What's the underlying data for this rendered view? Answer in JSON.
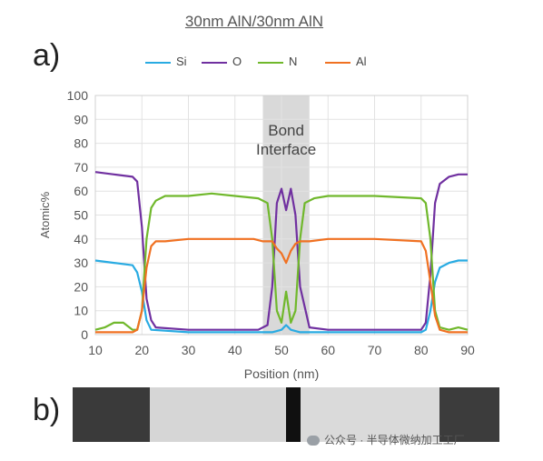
{
  "figure_title": "30nm AlN/30nm AlN",
  "panel_a_label": "a)",
  "panel_b_label": "b)",
  "watermark_text": "公众号 · 半导体微纳加工工厂",
  "chart_data": {
    "type": "line",
    "title": "",
    "xlabel": "Position (nm)",
    "ylabel": "Atomic%",
    "xlim": [
      10,
      90
    ],
    "ylim": [
      0,
      100
    ],
    "xticks": [
      10,
      20,
      30,
      40,
      50,
      60,
      70,
      80,
      90
    ],
    "yticks": [
      0,
      10,
      20,
      30,
      40,
      50,
      60,
      70,
      80,
      90,
      100
    ],
    "grid": true,
    "legend_position": "top",
    "shaded_region": {
      "x": [
        46,
        56
      ],
      "label_line1": "Bond",
      "label_line2": "Interface",
      "color": "#d9d9d9"
    },
    "series": [
      {
        "name": "Si",
        "color": "#29abe2",
        "x": [
          10,
          14,
          18,
          19,
          20,
          21,
          22,
          30,
          40,
          46,
          48,
          50,
          51,
          52,
          54,
          60,
          70,
          80,
          81,
          82,
          83,
          84,
          86,
          88,
          90
        ],
        "y": [
          31,
          30,
          29,
          26,
          18,
          6,
          2,
          1,
          1,
          1,
          1,
          2,
          4,
          2,
          1,
          1,
          1,
          1,
          2,
          10,
          22,
          28,
          30,
          31,
          31
        ]
      },
      {
        "name": "O",
        "color": "#7030a0",
        "x": [
          10,
          14,
          18,
          19,
          20,
          21,
          22,
          23,
          30,
          40,
          45,
          47,
          48,
          49,
          50,
          51,
          52,
          53,
          54,
          56,
          60,
          70,
          80,
          81,
          82,
          83,
          84,
          86,
          88,
          90
        ],
        "y": [
          68,
          67,
          66,
          64,
          45,
          15,
          6,
          3,
          2,
          2,
          2,
          4,
          20,
          55,
          61,
          52,
          61,
          50,
          20,
          3,
          2,
          2,
          2,
          5,
          25,
          55,
          63,
          66,
          67,
          67
        ]
      },
      {
        "name": "N",
        "color": "#70b82c",
        "x": [
          10,
          12,
          14,
          16,
          18,
          19,
          20,
          21,
          22,
          23,
          25,
          30,
          35,
          40,
          45,
          47,
          48,
          49,
          50,
          51,
          52,
          53,
          54,
          55,
          57,
          60,
          70,
          80,
          81,
          82,
          83,
          84,
          86,
          88,
          90
        ],
        "y": [
          2,
          3,
          5,
          5,
          2,
          2,
          10,
          40,
          53,
          56,
          58,
          58,
          59,
          58,
          57,
          55,
          40,
          10,
          5,
          18,
          5,
          10,
          40,
          55,
          57,
          58,
          58,
          57,
          55,
          40,
          10,
          3,
          2,
          3,
          2
        ]
      },
      {
        "name": "Al",
        "color": "#f07122",
        "x": [
          10,
          14,
          18,
          19,
          20,
          21,
          22,
          23,
          25,
          30,
          35,
          40,
          44,
          46,
          48,
          49,
          50,
          51,
          52,
          53,
          54,
          56,
          60,
          70,
          80,
          81,
          82,
          83,
          84,
          86,
          88,
          90
        ],
        "y": [
          1,
          1,
          1,
          2,
          10,
          28,
          37,
          39,
          39,
          40,
          40,
          40,
          40,
          39,
          39,
          36,
          34,
          30,
          35,
          38,
          39,
          39,
          40,
          40,
          39,
          35,
          22,
          8,
          2,
          1,
          1,
          1
        ]
      }
    ]
  },
  "tem_strip": {
    "bands": [
      {
        "from": 0.0,
        "to": 0.18,
        "color": "#3a3a3a"
      },
      {
        "from": 0.18,
        "to": 0.5,
        "color": "#d6d6d6"
      },
      {
        "from": 0.5,
        "to": 0.535,
        "color": "#101010"
      },
      {
        "from": 0.535,
        "to": 0.86,
        "color": "#dadada"
      },
      {
        "from": 0.86,
        "to": 1.0,
        "color": "#3c3c3c"
      }
    ]
  }
}
